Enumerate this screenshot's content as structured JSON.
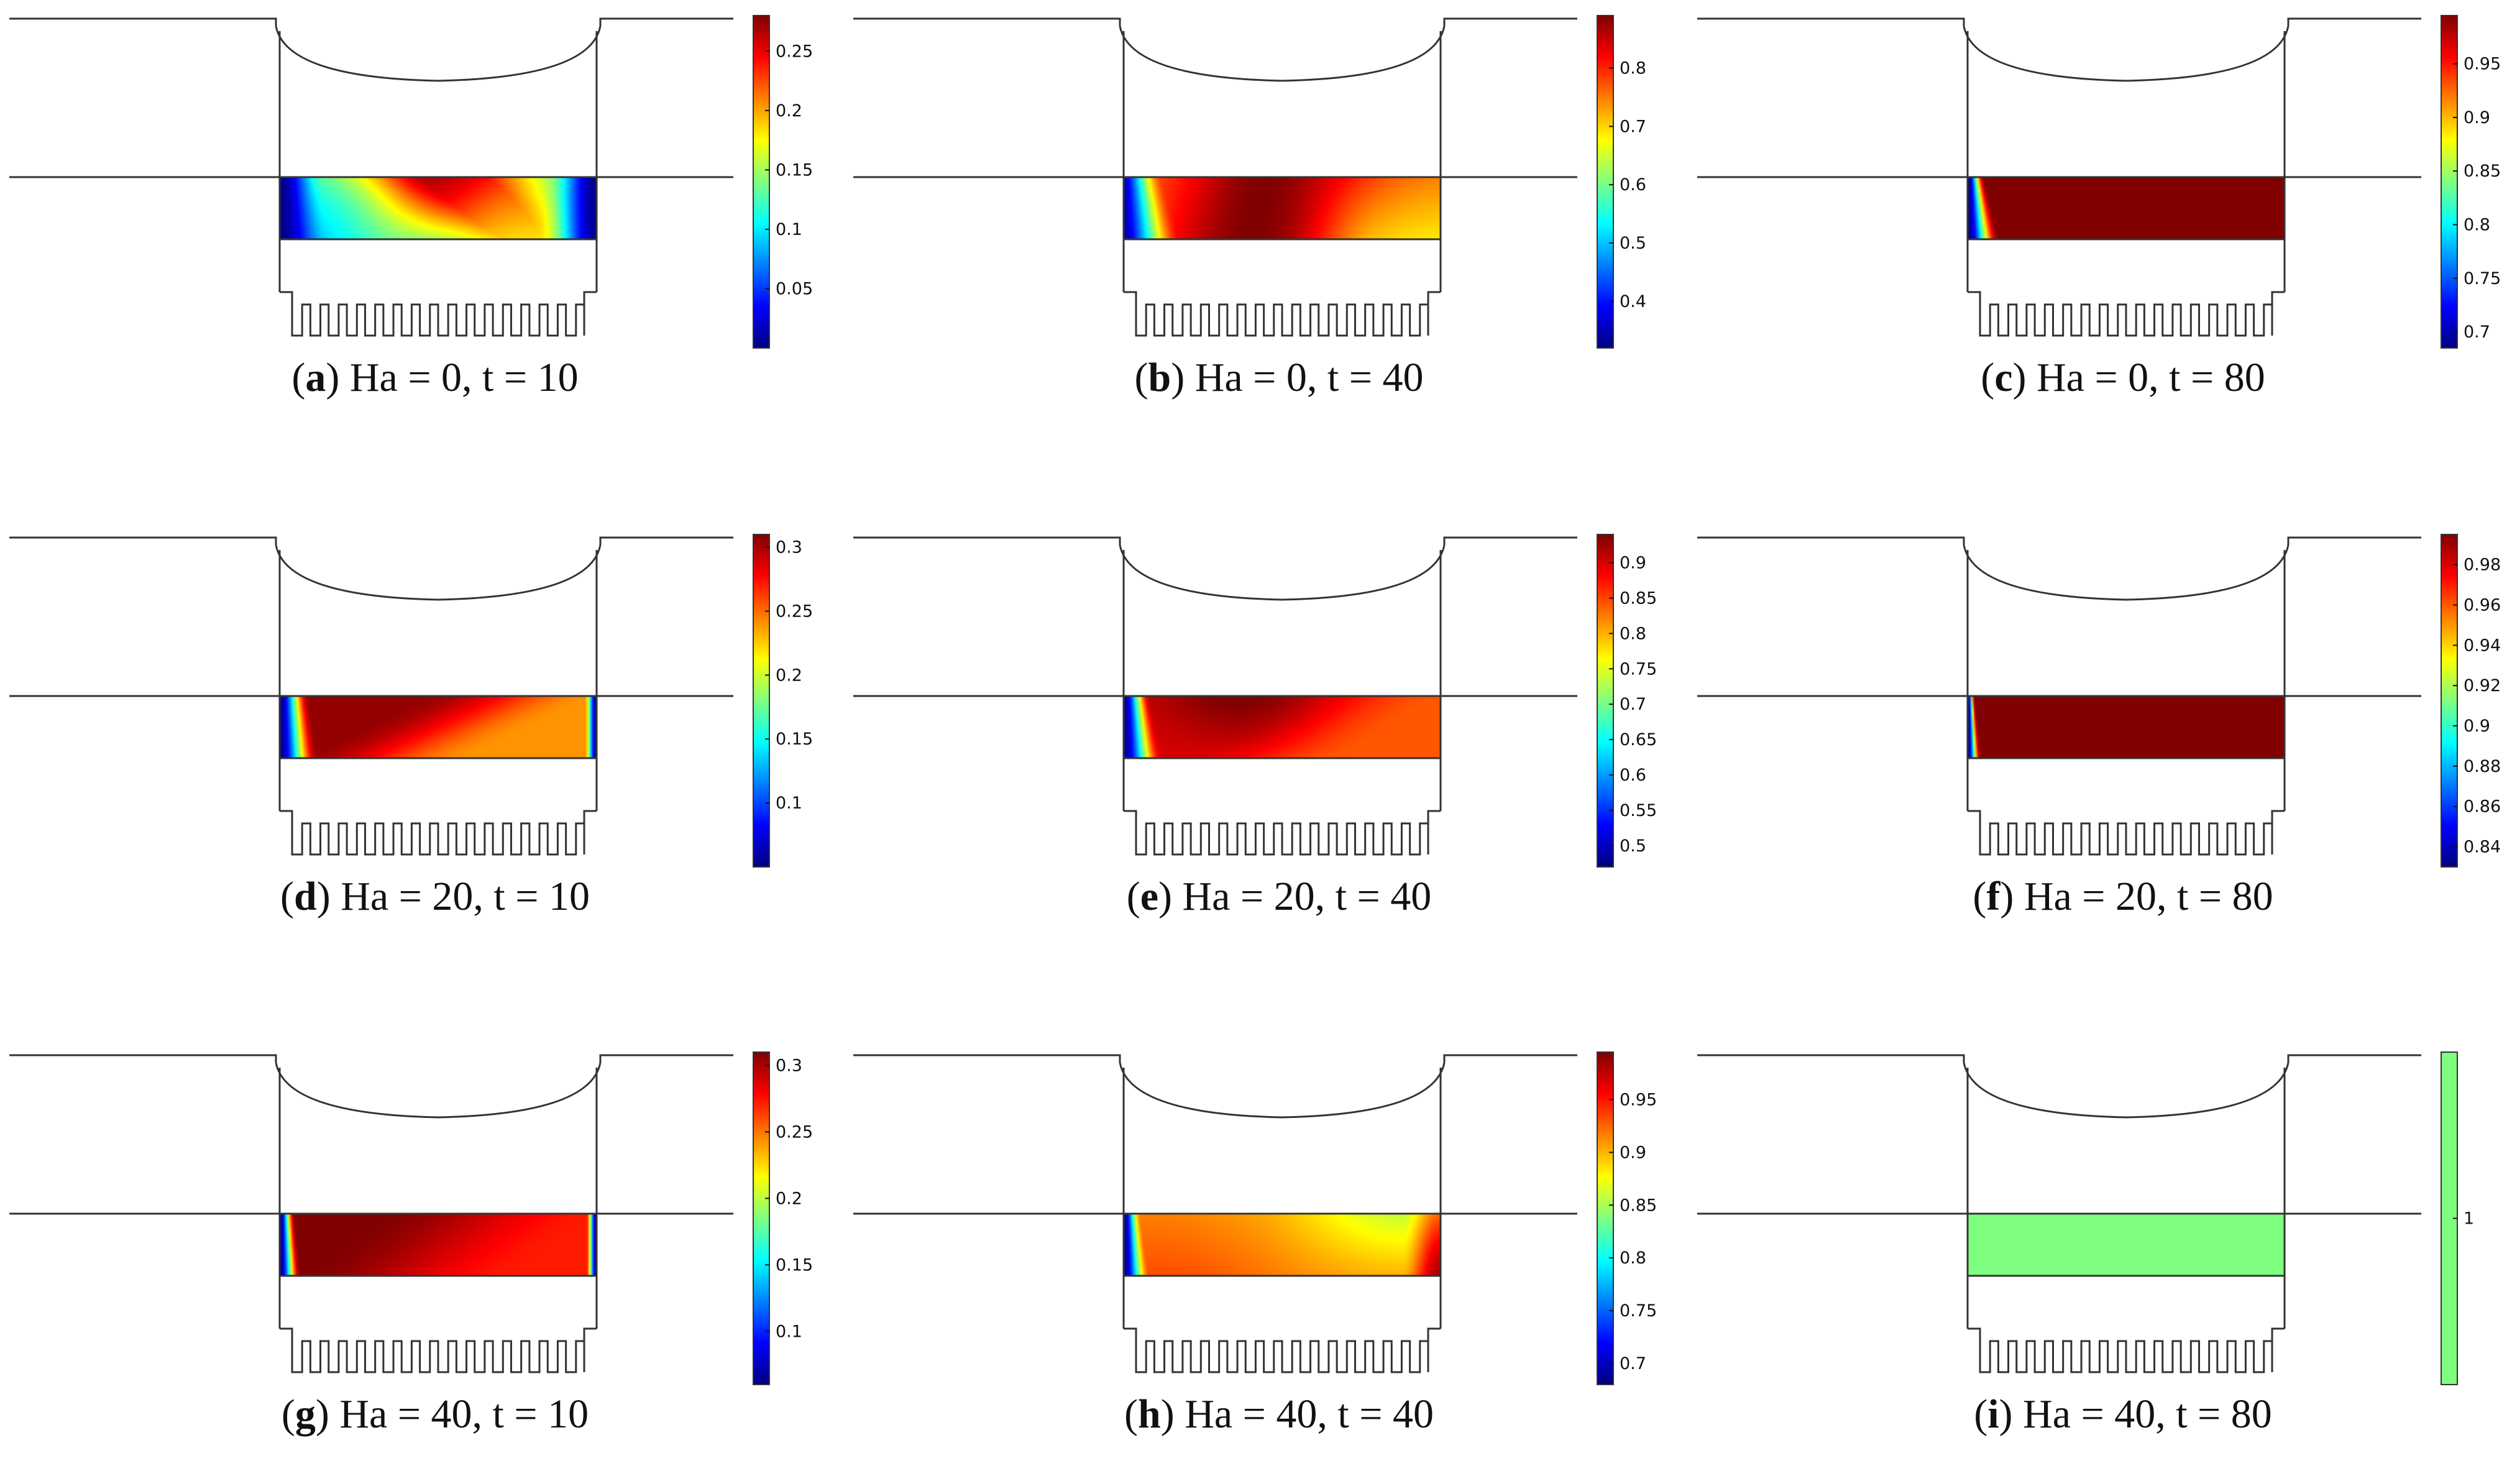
{
  "figure": {
    "colormap": "jet",
    "colors": {
      "outline": "#333333",
      "uniform_fill": "#7fff7f"
    },
    "panels": [
      {
        "id": "a",
        "ha": 0,
        "t": 10,
        "caption": {
          "letter": "a",
          "text": " Ha = 0, t = 10"
        },
        "field": {
          "kind": "a",
          "min": 0.0,
          "max": 0.28
        },
        "colorbar": {
          "min": 0.0,
          "max": 0.28,
          "ticks": [
            "0.05",
            "0.1",
            "0.15",
            "0.2",
            "0.25"
          ]
        }
      },
      {
        "id": "b",
        "ha": 0,
        "t": 40,
        "caption": {
          "letter": "b",
          "text": " Ha = 0, t = 40"
        },
        "field": {
          "kind": "b",
          "min": 0.32,
          "max": 0.89
        },
        "colorbar": {
          "min": 0.32,
          "max": 0.89,
          "ticks": [
            "0.4",
            "0.5",
            "0.6",
            "0.7",
            "0.8"
          ]
        }
      },
      {
        "id": "c",
        "ha": 0,
        "t": 80,
        "caption": {
          "letter": "c",
          "text": " Ha = 0, t = 80"
        },
        "field": {
          "kind": "c",
          "min": 0.685,
          "max": 0.995
        },
        "colorbar": {
          "min": 0.685,
          "max": 0.995,
          "ticks": [
            "0.7",
            "0.75",
            "0.8",
            "0.85",
            "0.9",
            "0.95"
          ]
        }
      },
      {
        "id": "d",
        "ha": 20,
        "t": 10,
        "caption": {
          "letter": "d",
          "text": " Ha = 20, t = 10"
        },
        "field": {
          "kind": "d",
          "min": 0.05,
          "max": 0.31
        },
        "colorbar": {
          "min": 0.05,
          "max": 0.31,
          "ticks": [
            "0.1",
            "0.15",
            "0.2",
            "0.25",
            "0.3"
          ]
        }
      },
      {
        "id": "e",
        "ha": 20,
        "t": 40,
        "caption": {
          "letter": "e",
          "text": " Ha = 20, t = 40"
        },
        "field": {
          "kind": "e",
          "min": 0.47,
          "max": 0.94
        },
        "colorbar": {
          "min": 0.47,
          "max": 0.94,
          "ticks": [
            "0.5",
            "0.55",
            "0.6",
            "0.65",
            "0.7",
            "0.75",
            "0.8",
            "0.85",
            "0.9"
          ]
        }
      },
      {
        "id": "f",
        "ha": 20,
        "t": 80,
        "caption": {
          "letter": "f",
          "text": " Ha = 20, t = 80"
        },
        "field": {
          "kind": "f",
          "min": 0.83,
          "max": 0.995
        },
        "colorbar": {
          "min": 0.83,
          "max": 0.995,
          "ticks": [
            "0.84",
            "0.86",
            "0.88",
            "0.9",
            "0.92",
            "0.94",
            "0.96",
            "0.98"
          ]
        }
      },
      {
        "id": "g",
        "ha": 40,
        "t": 10,
        "caption": {
          "letter": "g",
          "text": " Ha = 40, t = 10"
        },
        "field": {
          "kind": "g",
          "min": 0.06,
          "max": 0.31
        },
        "colorbar": {
          "min": 0.06,
          "max": 0.31,
          "ticks": [
            "0.1",
            "0.15",
            "0.2",
            "0.25",
            "0.3"
          ]
        }
      },
      {
        "id": "h",
        "ha": 40,
        "t": 40,
        "caption": {
          "letter": "h",
          "text": " Ha = 40, t = 40"
        },
        "field": {
          "kind": "h",
          "min": 0.68,
          "max": 0.995
        },
        "colorbar": {
          "min": 0.68,
          "max": 0.995,
          "ticks": [
            "0.7",
            "0.75",
            "0.8",
            "0.85",
            "0.9",
            "0.95"
          ]
        }
      },
      {
        "id": "i",
        "ha": 40,
        "t": 80,
        "caption": {
          "letter": "i",
          "text": " Ha = 40, t = 80"
        },
        "field": {
          "kind": "uniform",
          "min": 1,
          "max": 1
        },
        "colorbar": {
          "uniform": true,
          "ticks": [
            "1"
          ]
        }
      }
    ]
  }
}
